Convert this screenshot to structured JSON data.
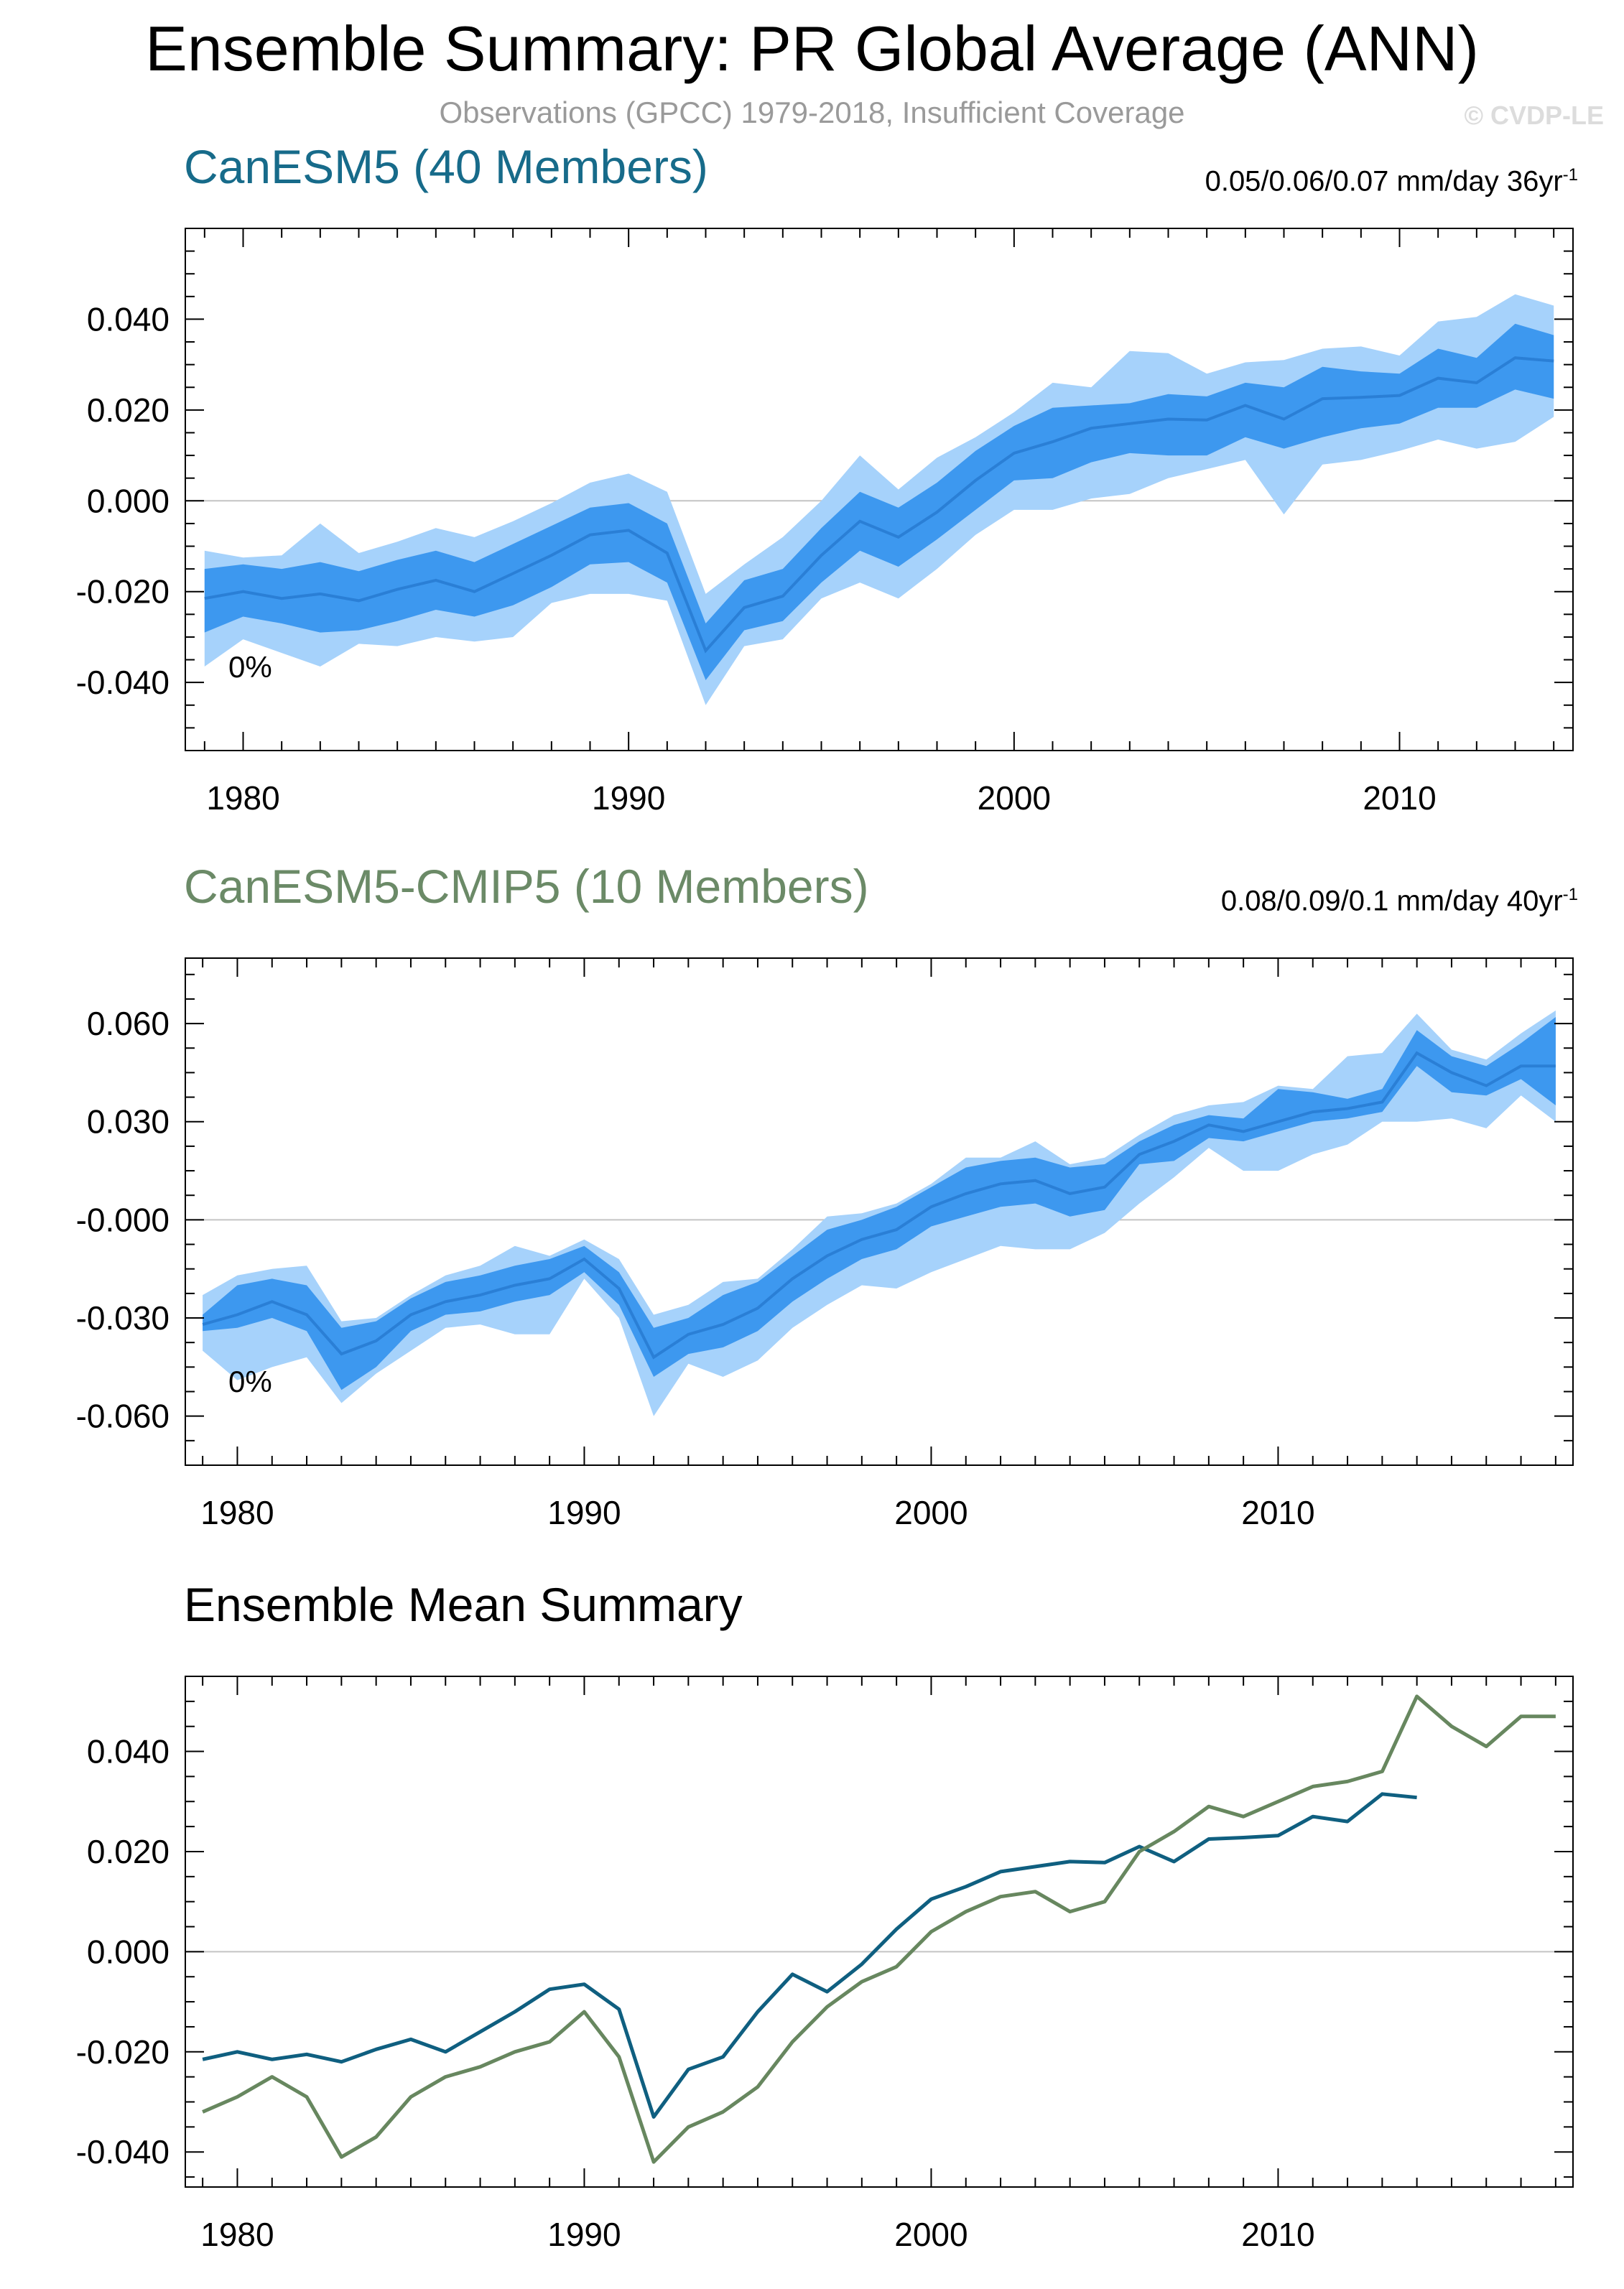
{
  "header": {
    "title": "Ensemble Summary: PR Global Average (ANN)",
    "subtitle": "Observations (GPCC) 1979-2018, Insufficient Coverage",
    "watermark": "© CVDP-LE"
  },
  "colors": {
    "canesm5_title": "#176b8a",
    "cmip5_title": "#6b8a67",
    "band_outer": "#a6d2fb",
    "band_inner": "#3d98ef",
    "mean_line": "#2a7fd6",
    "summary_canesm5": "#0f5f80",
    "summary_cmip5": "#67875f",
    "zero_line": "#c4c4c4"
  },
  "chart_data": [
    {
      "id": "canesm5",
      "type": "area",
      "title": "CanESM5 (40 Members)",
      "stat": "0.05/0.06/0.07 mm/day 36yr",
      "stat_sup": "-1",
      "annotation": "0%",
      "x": [
        1979,
        1980,
        1981,
        1982,
        1983,
        1984,
        1985,
        1986,
        1987,
        1988,
        1989,
        1990,
        1991,
        1992,
        1993,
        1994,
        1995,
        1996,
        1997,
        1998,
        1999,
        2000,
        2001,
        2002,
        2003,
        2004,
        2005,
        2006,
        2007,
        2008,
        2009,
        2010,
        2011,
        2012,
        2013,
        2014
      ],
      "xlim": [
        1978.5,
        2014.5
      ],
      "ylim": [
        -0.055,
        0.06
      ],
      "yticks": [
        -0.04,
        -0.02,
        0.0,
        0.02,
        0.04
      ],
      "ytick_labels": [
        "-0.040",
        "-0.020",
        "0.000",
        "0.020",
        "0.040"
      ],
      "xticks": [
        1980,
        1990,
        2000,
        2010
      ],
      "xtick_labels": [
        "1980",
        "1990",
        "2000",
        "2010"
      ],
      "mean": [
        -0.0215,
        -0.02,
        -0.0215,
        -0.0205,
        -0.022,
        -0.0195,
        -0.0175,
        -0.02,
        -0.016,
        -0.012,
        -0.0075,
        -0.0065,
        -0.0115,
        -0.033,
        -0.0235,
        -0.021,
        -0.012,
        -0.0045,
        -0.008,
        -0.0025,
        0.0045,
        0.0105,
        0.013,
        0.016,
        0.017,
        0.018,
        0.0178,
        0.021,
        0.018,
        0.0225,
        0.0228,
        0.0232,
        0.027,
        0.026,
        0.0315,
        0.0308
      ],
      "p25": [
        -0.029,
        -0.0255,
        -0.027,
        -0.029,
        -0.0285,
        -0.0265,
        -0.024,
        -0.0255,
        -0.023,
        -0.019,
        -0.014,
        -0.0135,
        -0.018,
        -0.0395,
        -0.0285,
        -0.0265,
        -0.018,
        -0.011,
        -0.0145,
        -0.0085,
        -0.002,
        0.0045,
        0.005,
        0.0085,
        0.0105,
        0.01,
        0.01,
        0.014,
        0.0115,
        0.014,
        0.016,
        0.017,
        0.0205,
        0.0205,
        0.0245,
        0.0225
      ],
      "p75": [
        -0.015,
        -0.014,
        -0.015,
        -0.0135,
        -0.0155,
        -0.013,
        -0.011,
        -0.0135,
        -0.0095,
        -0.0055,
        -0.0015,
        -0.0005,
        -0.005,
        -0.027,
        -0.0175,
        -0.015,
        -0.006,
        0.002,
        -0.0015,
        0.004,
        0.011,
        0.0165,
        0.0205,
        0.021,
        0.0215,
        0.0235,
        0.023,
        0.026,
        0.025,
        0.0295,
        0.0285,
        0.028,
        0.0335,
        0.0315,
        0.039,
        0.0365
      ],
      "min": [
        -0.0365,
        -0.0305,
        -0.0335,
        -0.0365,
        -0.0315,
        -0.032,
        -0.03,
        -0.031,
        -0.03,
        -0.0225,
        -0.0205,
        -0.0205,
        -0.022,
        -0.045,
        -0.032,
        -0.0305,
        -0.0215,
        -0.018,
        -0.0215,
        -0.015,
        -0.0075,
        -0.002,
        -0.002,
        0.0005,
        0.0015,
        0.005,
        0.007,
        0.009,
        -0.003,
        0.008,
        0.009,
        0.011,
        0.0135,
        0.0115,
        0.013,
        0.0185
      ],
      "max": [
        -0.011,
        -0.0125,
        -0.012,
        -0.005,
        -0.0115,
        -0.009,
        -0.006,
        -0.008,
        -0.0045,
        -0.0005,
        0.004,
        0.006,
        0.002,
        -0.0205,
        -0.014,
        -0.008,
        0.0,
        0.01,
        0.0025,
        0.0095,
        0.014,
        0.0195,
        0.026,
        0.025,
        0.033,
        0.0325,
        0.028,
        0.0305,
        0.031,
        0.0335,
        0.034,
        0.032,
        0.0395,
        0.0405,
        0.0455,
        0.043
      ]
    },
    {
      "id": "cmip5",
      "type": "area",
      "title": "CanESM5-CMIP5 (10 Members)",
      "stat": "0.08/0.09/0.1 mm/day 40yr",
      "stat_sup": "-1",
      "annotation": "0%",
      "x": [
        1979,
        1980,
        1981,
        1982,
        1983,
        1984,
        1985,
        1986,
        1987,
        1988,
        1989,
        1990,
        1991,
        1992,
        1993,
        1994,
        1995,
        1996,
        1997,
        1998,
        1999,
        2000,
        2001,
        2002,
        2003,
        2004,
        2005,
        2006,
        2007,
        2008,
        2009,
        2010,
        2011,
        2012,
        2013,
        2014,
        2015,
        2016,
        2017,
        2018
      ],
      "xlim": [
        1978.5,
        2018.5
      ],
      "ylim": [
        -0.075,
        0.08
      ],
      "yticks": [
        -0.06,
        -0.03,
        0.0,
        0.03,
        0.06
      ],
      "ytick_labels": [
        "-0.060",
        "-0.030",
        "-0.000",
        "0.030",
        "0.060"
      ],
      "xticks": [
        1980,
        1990,
        2000,
        2010
      ],
      "xtick_labels": [
        "1980",
        "1990",
        "2000",
        "2010"
      ],
      "mean": [
        -0.032,
        -0.029,
        -0.025,
        -0.029,
        -0.041,
        -0.037,
        -0.029,
        -0.025,
        -0.023,
        -0.02,
        -0.018,
        -0.012,
        -0.021,
        -0.042,
        -0.035,
        -0.032,
        -0.027,
        -0.018,
        -0.011,
        -0.006,
        -0.003,
        0.004,
        0.008,
        0.011,
        0.012,
        0.008,
        0.01,
        0.02,
        0.024,
        0.029,
        0.027,
        0.03,
        0.033,
        0.034,
        0.036,
        0.051,
        0.045,
        0.041,
        0.047,
        0.047
      ],
      "p25": [
        -0.034,
        -0.033,
        -0.03,
        -0.034,
        -0.052,
        -0.045,
        -0.034,
        -0.029,
        -0.028,
        -0.025,
        -0.023,
        -0.016,
        -0.026,
        -0.048,
        -0.041,
        -0.039,
        -0.034,
        -0.025,
        -0.018,
        -0.012,
        -0.009,
        -0.002,
        0.001,
        0.004,
        0.005,
        0.001,
        0.003,
        0.017,
        0.018,
        0.025,
        0.024,
        0.027,
        0.03,
        0.031,
        0.033,
        0.047,
        0.039,
        0.038,
        0.043,
        0.035
      ],
      "p75": [
        -0.029,
        -0.02,
        -0.018,
        -0.02,
        -0.033,
        -0.031,
        -0.024,
        -0.019,
        -0.017,
        -0.014,
        -0.012,
        -0.008,
        -0.016,
        -0.033,
        -0.03,
        -0.023,
        -0.019,
        -0.011,
        -0.003,
        0.0,
        0.004,
        0.01,
        0.016,
        0.018,
        0.019,
        0.016,
        0.017,
        0.024,
        0.029,
        0.032,
        0.031,
        0.04,
        0.039,
        0.037,
        0.04,
        0.058,
        0.05,
        0.047,
        0.054,
        0.062
      ],
      "min": [
        -0.04,
        -0.049,
        -0.045,
        -0.042,
        -0.056,
        -0.047,
        -0.04,
        -0.033,
        -0.032,
        -0.035,
        -0.035,
        -0.018,
        -0.03,
        -0.06,
        -0.044,
        -0.048,
        -0.043,
        -0.033,
        -0.026,
        -0.02,
        -0.021,
        -0.016,
        -0.012,
        -0.008,
        -0.009,
        -0.009,
        -0.004,
        0.005,
        0.013,
        0.022,
        0.015,
        0.015,
        0.02,
        0.023,
        0.03,
        0.03,
        0.031,
        0.028,
        0.038,
        0.03
      ],
      "max": [
        -0.023,
        -0.017,
        -0.015,
        -0.014,
        -0.031,
        -0.03,
        -0.023,
        -0.017,
        -0.014,
        -0.008,
        -0.011,
        -0.006,
        -0.012,
        -0.029,
        -0.026,
        -0.019,
        -0.018,
        -0.009,
        0.001,
        0.002,
        0.005,
        0.011,
        0.019,
        0.019,
        0.024,
        0.017,
        0.019,
        0.026,
        0.032,
        0.035,
        0.036,
        0.041,
        0.04,
        0.05,
        0.051,
        0.063,
        0.052,
        0.049,
        0.057,
        0.064
      ]
    },
    {
      "id": "summary",
      "type": "line",
      "title": "Ensemble Mean Summary",
      "xlim": [
        1978.5,
        2018.5
      ],
      "ylim": [
        -0.047,
        0.055
      ],
      "yticks": [
        -0.04,
        -0.02,
        0.0,
        0.02,
        0.04
      ],
      "ytick_labels": [
        "-0.040",
        "-0.020",
        "0.000",
        "0.020",
        "0.040"
      ],
      "xticks": [
        1980,
        1990,
        2000,
        2010
      ],
      "xtick_labels": [
        "1980",
        "1990",
        "2000",
        "2010"
      ],
      "series": [
        {
          "name": "CanESM5",
          "x": [
            1979,
            1980,
            1981,
            1982,
            1983,
            1984,
            1985,
            1986,
            1987,
            1988,
            1989,
            1990,
            1991,
            1992,
            1993,
            1994,
            1995,
            1996,
            1997,
            1998,
            1999,
            2000,
            2001,
            2002,
            2003,
            2004,
            2005,
            2006,
            2007,
            2008,
            2009,
            2010,
            2011,
            2012,
            2013,
            2014
          ],
          "values": [
            -0.0215,
            -0.02,
            -0.0215,
            -0.0205,
            -0.022,
            -0.0195,
            -0.0175,
            -0.02,
            -0.016,
            -0.012,
            -0.0075,
            -0.0065,
            -0.0115,
            -0.033,
            -0.0235,
            -0.021,
            -0.012,
            -0.0045,
            -0.008,
            -0.0025,
            0.0045,
            0.0105,
            0.013,
            0.016,
            0.017,
            0.018,
            0.0178,
            0.021,
            0.018,
            0.0225,
            0.0228,
            0.0232,
            0.027,
            0.026,
            0.0315,
            0.0308
          ]
        },
        {
          "name": "CanESM5-CMIP5",
          "x": [
            1979,
            1980,
            1981,
            1982,
            1983,
            1984,
            1985,
            1986,
            1987,
            1988,
            1989,
            1990,
            1991,
            1992,
            1993,
            1994,
            1995,
            1996,
            1997,
            1998,
            1999,
            2000,
            2001,
            2002,
            2003,
            2004,
            2005,
            2006,
            2007,
            2008,
            2009,
            2010,
            2011,
            2012,
            2013,
            2014,
            2015,
            2016,
            2017,
            2018
          ],
          "values": [
            -0.032,
            -0.029,
            -0.025,
            -0.029,
            -0.041,
            -0.037,
            -0.029,
            -0.025,
            -0.023,
            -0.02,
            -0.018,
            -0.012,
            -0.021,
            -0.042,
            -0.035,
            -0.032,
            -0.027,
            -0.018,
            -0.011,
            -0.006,
            -0.003,
            0.004,
            0.008,
            0.011,
            0.012,
            0.008,
            0.01,
            0.02,
            0.024,
            0.029,
            0.027,
            0.03,
            0.033,
            0.034,
            0.036,
            0.051,
            0.045,
            0.041,
            0.047,
            0.047
          ]
        }
      ]
    }
  ]
}
